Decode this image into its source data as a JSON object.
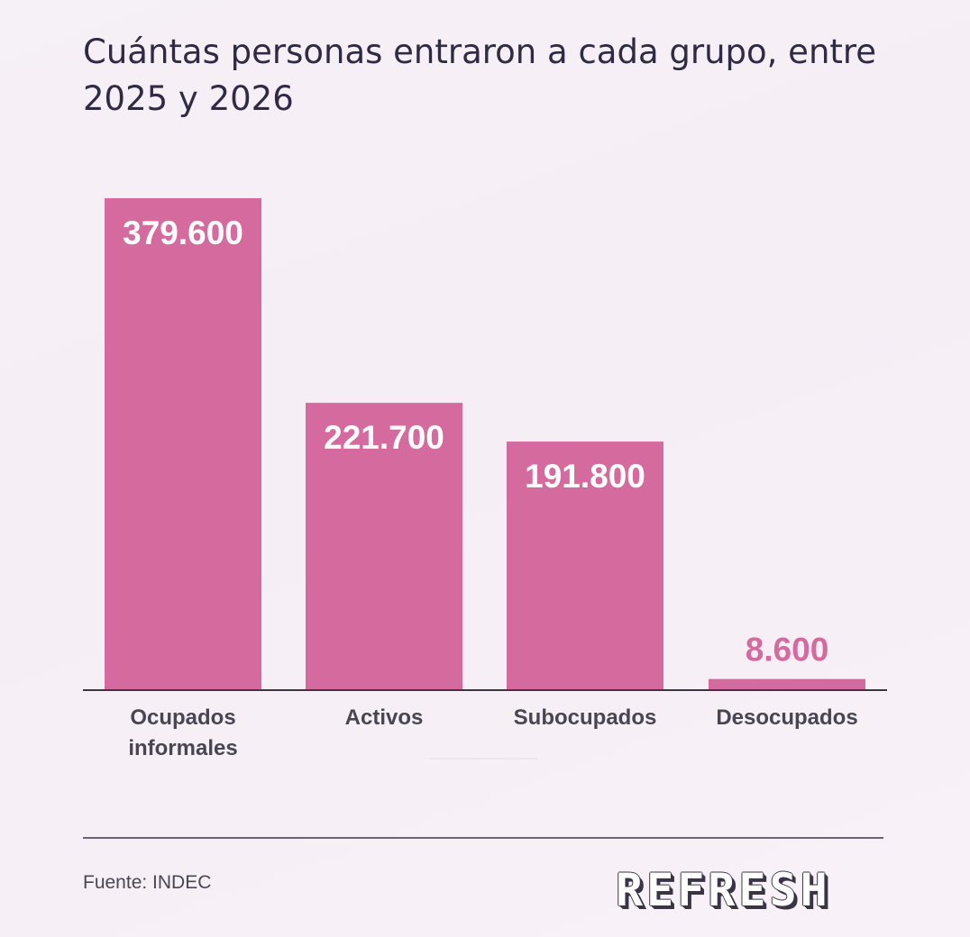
{
  "title": "Cuántas personas entraron a cada grupo, entre 2025 y 2026",
  "source": "Fuente: INDEC",
  "brand": "REFRESH",
  "colors": {
    "bar": "#d56a9f",
    "label_inside": "#ffffff",
    "label_outside": "#d56a9f",
    "axis": "#3b3742",
    "category_text": "#4a4553"
  },
  "chart_data": {
    "type": "bar",
    "title": "Cuántas personas entraron a cada grupo, entre 2025 y 2026",
    "categories": [
      [
        "Ocupados",
        "informales"
      ],
      [
        "Activos"
      ],
      [
        "Subocupados"
      ],
      [
        "Desocupados"
      ]
    ],
    "values": [
      379600,
      221700,
      191800,
      8600
    ],
    "value_labels": [
      "379.600",
      "221.700",
      "191.800",
      "8.600"
    ],
    "xlabel": "",
    "ylabel": "",
    "ylim": [
      0,
      379600
    ],
    "grid": false,
    "legend": "none"
  }
}
